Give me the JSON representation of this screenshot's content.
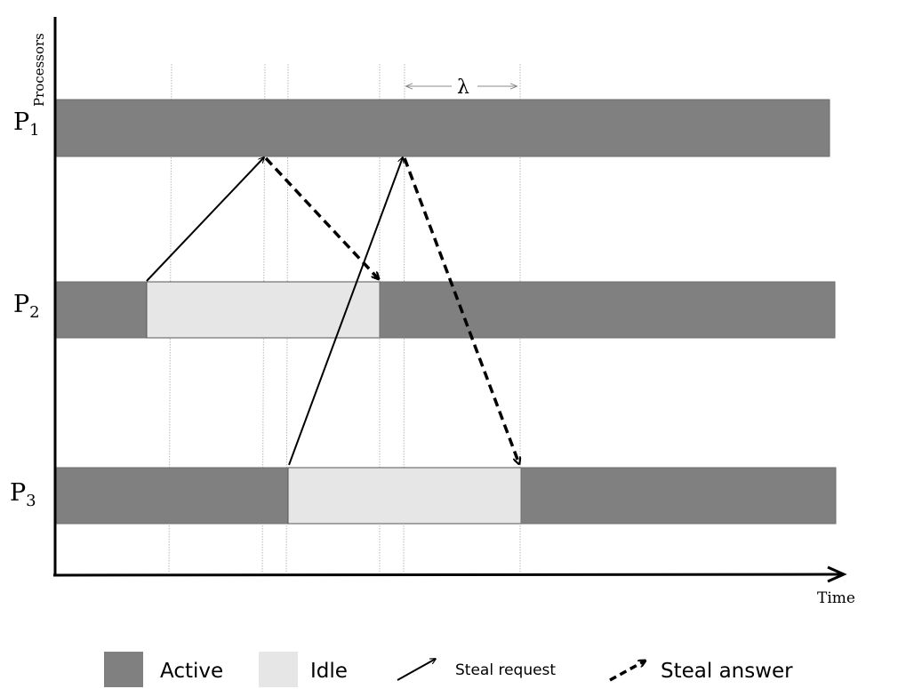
{
  "axis": {
    "y_label": "Processors",
    "x_label": "Time"
  },
  "annotation": {
    "lambda": "λ"
  },
  "processors": [
    {
      "name": "P",
      "index": "1",
      "segments": [
        {
          "state": "active"
        }
      ]
    },
    {
      "name": "P",
      "index": "2",
      "segments": [
        {
          "state": "active"
        },
        {
          "state": "idle"
        },
        {
          "state": "active"
        }
      ]
    },
    {
      "name": "P",
      "index": "3",
      "segments": [
        {
          "state": "active"
        },
        {
          "state": "idle"
        },
        {
          "state": "active"
        }
      ]
    }
  ],
  "arrows": [
    {
      "type": "steal-request",
      "from": "P2",
      "to": "P1"
    },
    {
      "type": "steal-answer",
      "from": "P1",
      "to": "P2"
    },
    {
      "type": "steal-request",
      "from": "P3",
      "to": "P1"
    },
    {
      "type": "steal-answer",
      "from": "P1",
      "to": "P3"
    }
  ],
  "legend": {
    "active": "Active",
    "idle": "Idle",
    "steal_request": "Steal request",
    "steal_answer": "Steal answer"
  },
  "colors": {
    "active": "#808080",
    "idle": "#e6e6e6",
    "guide": "#b8b8b8",
    "ink": "#000000"
  }
}
